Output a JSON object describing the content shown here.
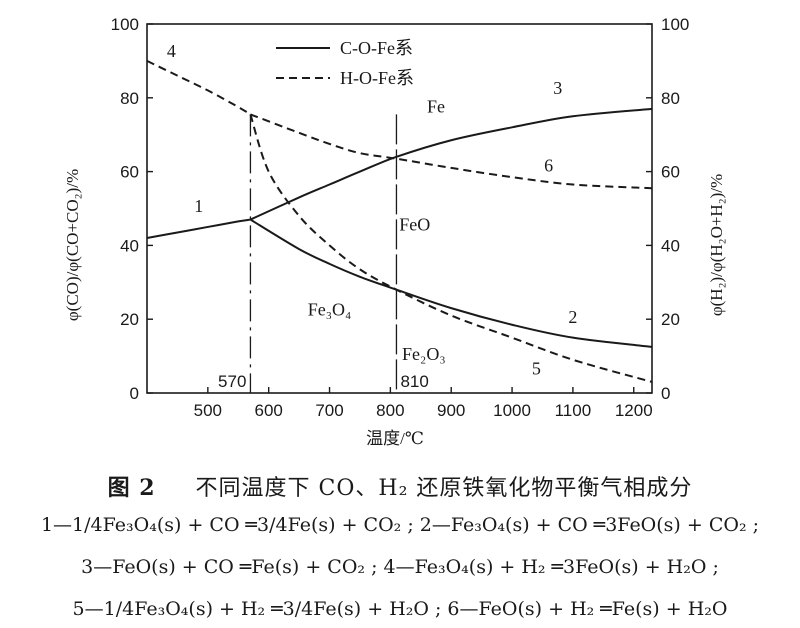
{
  "chart_data": {
    "type": "line",
    "xlabel": "温度/℃",
    "ylabel_left": "φ(CO)/φ(CO+CO₂)/%",
    "ylabel_right": "φ(H₂)/φ(H₂O+H₂)/%",
    "xlim": [
      400,
      1230
    ],
    "ylim": [
      0,
      100
    ],
    "xticks": [
      "500",
      "600",
      "700",
      "800",
      "900",
      "1000",
      "1100",
      "1200"
    ],
    "yticks": [
      "0",
      "20",
      "40",
      "60",
      "80",
      "100"
    ],
    "legend": [
      {
        "label": "C-O-Fe系",
        "style": "solid"
      },
      {
        "label": "H-O-Fe系",
        "style": "dashed"
      }
    ],
    "vlines": [
      {
        "x": 570,
        "label": "570"
      },
      {
        "x": 810,
        "label": "810"
      }
    ],
    "series": [
      {
        "name": "1",
        "style": "solid",
        "x": [
          400,
          450,
          500,
          550,
          570
        ],
        "y": [
          42,
          43.5,
          45,
          46.5,
          47
        ]
      },
      {
        "name": "2",
        "style": "solid",
        "x": [
          570,
          650,
          700,
          750,
          810,
          900,
          1000,
          1100,
          1230
        ],
        "y": [
          47,
          39,
          35,
          31.5,
          28,
          23,
          18.5,
          15,
          12.5
        ]
      },
      {
        "name": "3",
        "style": "solid",
        "x": [
          570,
          650,
          700,
          750,
          810,
          900,
          1000,
          1100,
          1230
        ],
        "y": [
          47,
          53,
          56.5,
          60,
          64,
          68.5,
          72,
          75,
          77
        ]
      },
      {
        "name": "4",
        "style": "dashed",
        "x": [
          400,
          450,
          500,
          550,
          570
        ],
        "y": [
          90,
          86,
          82,
          77.5,
          75.5
        ]
      },
      {
        "name": "5",
        "style": "dashed",
        "x": [
          570,
          600,
          650,
          700,
          750,
          810,
          900,
          1000,
          1100,
          1230
        ],
        "y": [
          75.5,
          60,
          48,
          40,
          33.5,
          28,
          21,
          15,
          9,
          3
        ]
      },
      {
        "name": "6",
        "style": "dashed",
        "x": [
          570,
          650,
          700,
          750,
          810,
          900,
          1000,
          1100,
          1230
        ],
        "y": [
          75.5,
          70.5,
          67.5,
          65,
          63.5,
          61,
          58.5,
          56.5,
          55.5
        ]
      }
    ],
    "regions": [
      {
        "label": "Fe",
        "x": 875,
        "y": 76
      },
      {
        "label": "FeO",
        "x": 840,
        "y": 44
      },
      {
        "label": "Fe₃O₄",
        "x": 700,
        "y": 21
      },
      {
        "label": "Fe₂O₃",
        "x": 855,
        "y": 9
      }
    ],
    "curve_labels": [
      {
        "text": "1",
        "x": 485,
        "y": 49
      },
      {
        "text": "2",
        "x": 1100,
        "y": 19
      },
      {
        "text": "3",
        "x": 1075,
        "y": 81
      },
      {
        "text": "4",
        "x": 440,
        "y": 91
      },
      {
        "text": "5",
        "x": 1040,
        "y": 5
      },
      {
        "text": "6",
        "x": 1060,
        "y": 60
      }
    ]
  },
  "caption": {
    "figure_no": "图 2",
    "title": "不同温度下 CO、H₂ 还原铁氧化物平衡气相成分"
  },
  "equations": [
    "1—1/4Fe₃O₄(s) + CO ═3/4Fe(s) + CO₂ ; 2—Fe₃O₄(s) + CO ═3FeO(s) + CO₂ ;",
    "3—FeO(s) + CO ═Fe(s) + CO₂ ; 4—Fe₃O₄(s) + H₂ ═3FeO(s) + H₂O ;",
    "5—1/4Fe₃O₄(s) + H₂ ═3/4Fe(s) + H₂O ; 6—FeO(s) + H₂ ═Fe(s) + H₂O"
  ]
}
